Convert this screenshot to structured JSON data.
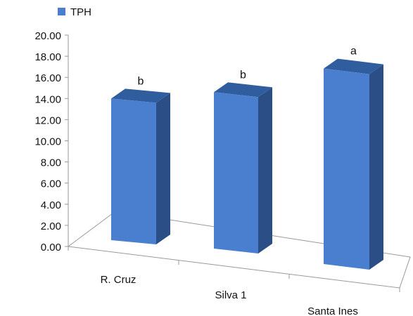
{
  "chart_data": {
    "type": "bar",
    "categories": [
      "R. Cruz",
      "Silva 1",
      "Santa Ines"
    ],
    "series": [
      {
        "name": "TPH",
        "values": [
          13.4,
          14.8,
          18.5
        ]
      }
    ],
    "annotations": [
      "b",
      "b",
      "a"
    ],
    "yticks": [
      "0.00",
      "2.00",
      "4.00",
      "6.00",
      "8.00",
      "10.00",
      "12.00",
      "14.00",
      "16.00",
      "18.00",
      "20.00"
    ],
    "ylim": [
      0,
      20
    ],
    "title": "",
    "xlabel": "",
    "ylabel": "",
    "legend_position": "top-left",
    "grid": false,
    "style": "3d-column",
    "colors": {
      "front": "#4a7fd0",
      "top": "#2f5d9e",
      "side": "#2a4e85"
    }
  }
}
